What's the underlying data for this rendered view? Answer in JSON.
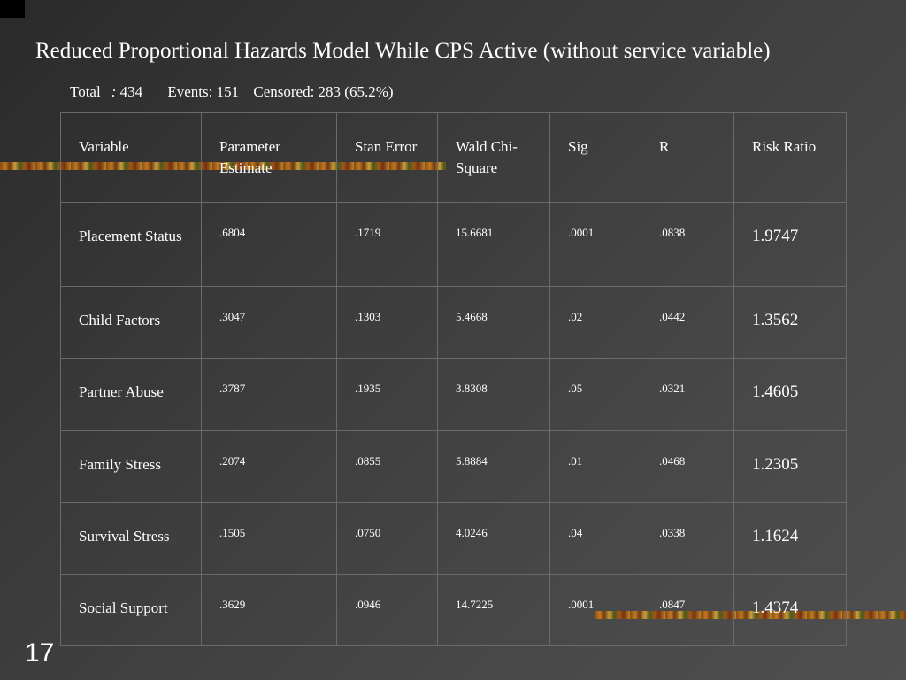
{
  "title": "Reduced Proportional Hazards Model While CPS Active (without service variable)",
  "summary": {
    "total_label": "Total",
    "total_colon": ":",
    "total_value": "434",
    "events": "Events: 151",
    "censored": "Censored: 283 (65.2%)"
  },
  "table": {
    "headers": [
      "Variable",
      "Parameter Estimate",
      "Stan Error",
      "Wald Chi-Square",
      "Sig",
      "R",
      "Risk Ratio"
    ],
    "rows": [
      {
        "variable": "Placement Status",
        "estimate": ".6804",
        "std_error": ".1719",
        "wald": "15.6681",
        "sig": ".0001",
        "r": ".0838",
        "risk_ratio": "1.9747"
      },
      {
        "variable": "Child Factors",
        "estimate": ".3047",
        "std_error": ".1303",
        "wald": "5.4668",
        "sig": ".02",
        "r": ".0442",
        "risk_ratio": "1.3562"
      },
      {
        "variable": "Partner Abuse",
        "estimate": ".3787",
        "std_error": ".1935",
        "wald": "3.8308",
        "sig": ".05",
        "r": ".0321",
        "risk_ratio": "1.4605"
      },
      {
        "variable": "Family Stress",
        "estimate": ".2074",
        "std_error": ".0855",
        "wald": "5.8884",
        "sig": ".01",
        "r": ".0468",
        "risk_ratio": "1.2305"
      },
      {
        "variable": "Survival Stress",
        "estimate": ".1505",
        "std_error": ".0750",
        "wald": "4.0246",
        "sig": ".04",
        "r": ".0338",
        "risk_ratio": "1.1624"
      },
      {
        "variable": "Social Support",
        "estimate": ".3629",
        "std_error": ".0946",
        "wald": "14.7225",
        "sig": ".0001",
        "r": ".0847",
        "risk_ratio": "1.4374"
      }
    ]
  },
  "slide_number": "17",
  "colors": {
    "background": "#3a3a3a",
    "text": "#ffffff",
    "grid": "#6a6a6a",
    "accent_stripe": "#c97a1e"
  }
}
